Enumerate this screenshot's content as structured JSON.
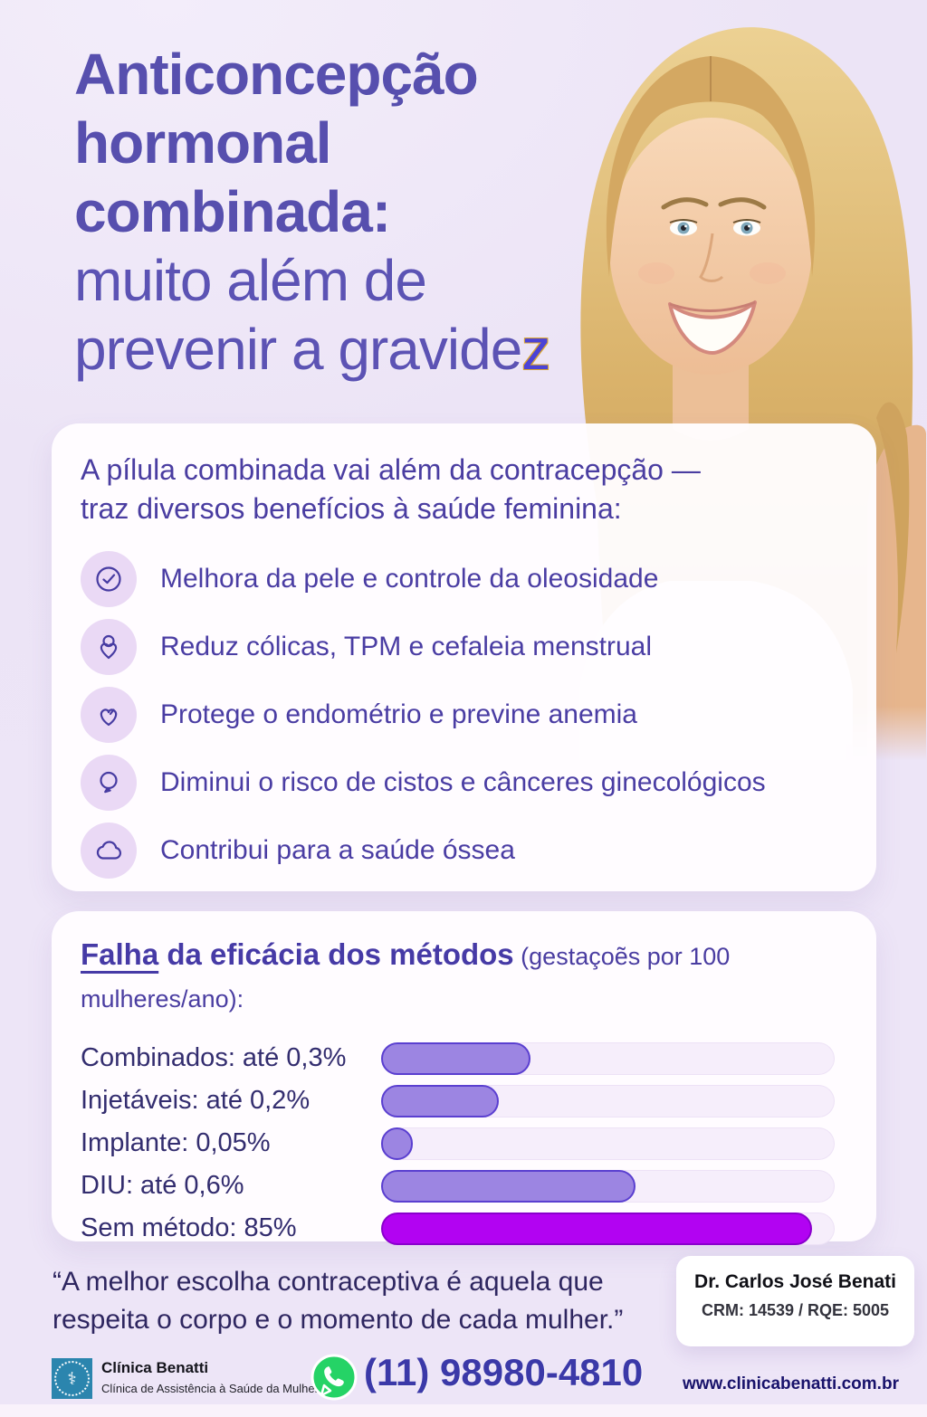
{
  "title": {
    "bold_lines": [
      "Anticoncepção",
      "hormonal",
      "combinada:"
    ],
    "light_lines": [
      "muito além de",
      "prevenir a gravide"
    ],
    "accent": "z"
  },
  "benefits": {
    "intro_lines": [
      "A pílula combinada vai além da contracepção —",
      "traz diversos benefícios à saúde feminina:"
    ],
    "items": [
      {
        "icon": "face-check-icon",
        "text": "Melhora da pele e controle da oleosidade"
      },
      {
        "icon": "heart-circle-icon",
        "text": "Reduz cólicas, TPM e cefaleia menstrual"
      },
      {
        "icon": "heart-icon",
        "text": "Protege o endométrio e previne anemia"
      },
      {
        "icon": "balloon-icon",
        "text": "Diminui o risco de cistos e cânceres ginecológicos"
      },
      {
        "icon": "cloud-icon",
        "text": "Contribui para a saúde óssea"
      }
    ]
  },
  "chart_data": {
    "type": "bar",
    "orientation": "horizontal",
    "title": "Falha da eficácia dos métodos",
    "title_underlined_word": "Falha",
    "title_rest": " da eficácia dos métodos",
    "note": " (gestaçoẽs por 100 mulheres/ano):",
    "categories": [
      "Combinados",
      "Injetáveis",
      "Implante",
      "DIU",
      "Sem método"
    ],
    "values": [
      0.3,
      0.2,
      0.05,
      0.6,
      85
    ],
    "labels": [
      "Combinados: até 0,3%",
      "Injetáveis: até 0,2%",
      "Implante: 0,05%",
      "DIU: até 0,6%",
      "Sem método: 85%"
    ],
    "bar_fill_fractions": [
      0.33,
      0.26,
      0.07,
      0.56,
      0.95
    ],
    "bar_color": "#9c85e2",
    "bar_border": "#5a3fd0",
    "highlight_index": 4,
    "highlight_color": "#b203f2",
    "highlight_border": "#8a00cc",
    "track_color": "#f6eefb",
    "legend": "none",
    "grid": "off"
  },
  "quote": {
    "text": "“A melhor escolha contraceptiva é aquela que respeita o corpo e o momento de cada mulher.”"
  },
  "doctor": {
    "name": "Dr. Carlos José Benati",
    "credentials": "CRM: 14539 / RQE: 5005"
  },
  "footer": {
    "clinic_name": "Clínica Benatti",
    "clinic_tagline": "Clínica de Assistência à Saúde da Mulher",
    "logo_glyph": "⚕",
    "phone": "(11) 98980-4810",
    "website": "www.clinicabenatti.com.br",
    "whatsapp_color": "#25d366"
  },
  "colors": {
    "background": "#ece4f6",
    "title_purple": "#574fae",
    "card_text": "#4a3da3",
    "accent_blue": "#4b42d6",
    "phone_indigo": "#3b39a8"
  }
}
